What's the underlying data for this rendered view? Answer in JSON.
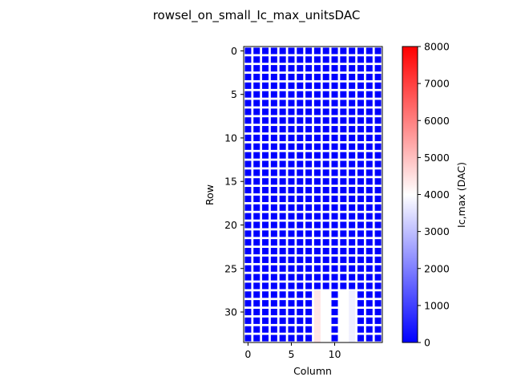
{
  "chart_data": {
    "type": "heatmap",
    "title": "rowsel_on_small_Ic_max_unitsDAC",
    "xlabel": "Column",
    "ylabel": "Row",
    "colorbar_label": "Ic,max (DAC)",
    "n_rows": 34,
    "n_cols": 16,
    "x_ticks": [
      "0",
      "5",
      "10"
    ],
    "y_ticks": [
      "0",
      "5",
      "10",
      "15",
      "20",
      "25",
      "30"
    ],
    "colorbar_ticks": [
      "0",
      "1000",
      "2000",
      "3000",
      "4000",
      "5000",
      "6000",
      "7000",
      "8000"
    ],
    "vmin": 0,
    "vmax": 8000,
    "colormap": "bwr",
    "colors": {
      "low": "#0000ff",
      "mid": "#ffffff",
      "high": "#ff0000"
    },
    "default_value": 0,
    "nan_gridlines": "white grid between cells (unmeasured, shown as white)",
    "highlighted_cells": [
      {
        "col": 8,
        "rows": [
          28,
          29,
          30,
          31,
          32,
          33
        ],
        "value": 4400
      },
      {
        "col": 9,
        "rows": [
          28,
          29,
          30,
          31,
          32,
          33
        ],
        "value": 4000
      },
      {
        "col": 11,
        "rows": [
          28,
          29,
          30,
          31,
          32,
          33
        ],
        "value": 4000
      },
      {
        "col": 12,
        "rows": [
          28,
          29,
          30,
          31,
          32,
          33
        ],
        "value": 3750
      }
    ]
  }
}
